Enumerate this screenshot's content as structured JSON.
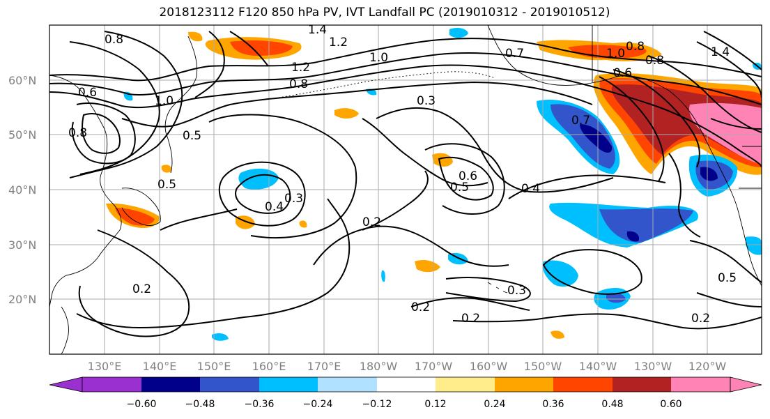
{
  "title": "2018123112 F120 850 hPa PV, IVT Landfall PC (2019010312 - 2019010512)",
  "lat_labels": [
    "60°N",
    "50°N",
    "40°N",
    "30°N",
    "20°N"
  ],
  "lon_labels": [
    "130°E",
    "140°E",
    "150°E",
    "160°E",
    "170°E",
    "180°W",
    "170°W",
    "160°W",
    "150°W",
    "140°W",
    "130°W",
    "120°W"
  ],
  "contour_labels": [
    "0.8",
    "1.4",
    "1.2",
    "1.0",
    "0.7",
    "1.0",
    "0.8",
    "1.4",
    "0.6",
    "1.0",
    "0.8",
    "1.2",
    "0.8",
    "0.3",
    "0.6",
    "0.5",
    "0.7",
    "0.8",
    "0.5",
    "0.5",
    "0.6",
    "0.4",
    "0.4",
    "0.3",
    "0.2",
    "0.2",
    "0.2",
    "0.2",
    "0.3",
    "0.5",
    "0.2"
  ],
  "colorbar": {
    "ticks": [
      "−0.60",
      "−0.48",
      "−0.36",
      "−0.24",
      "−0.12",
      "0.12",
      "0.24",
      "0.36",
      "0.48",
      "0.60"
    ],
    "colors": [
      "#9b30d0",
      "#00008b",
      "#3355cc",
      "#00bfff",
      "#b0e2ff",
      "#ffffff",
      "#ffec8b",
      "#ffa500",
      "#ff4500",
      "#b22222",
      "#ff83b5"
    ]
  },
  "shading_colors": {
    "neg_strong": "#00008b",
    "neg_mid": "#3355cc",
    "neg_light": "#00bfff",
    "neg_pale": "#b0e2ff",
    "pos_pale": "#ffec8b",
    "pos_light": "#ffa500",
    "pos_mid": "#ff4500",
    "pos_strong": "#b22222",
    "pos_max": "#ff83b5"
  }
}
